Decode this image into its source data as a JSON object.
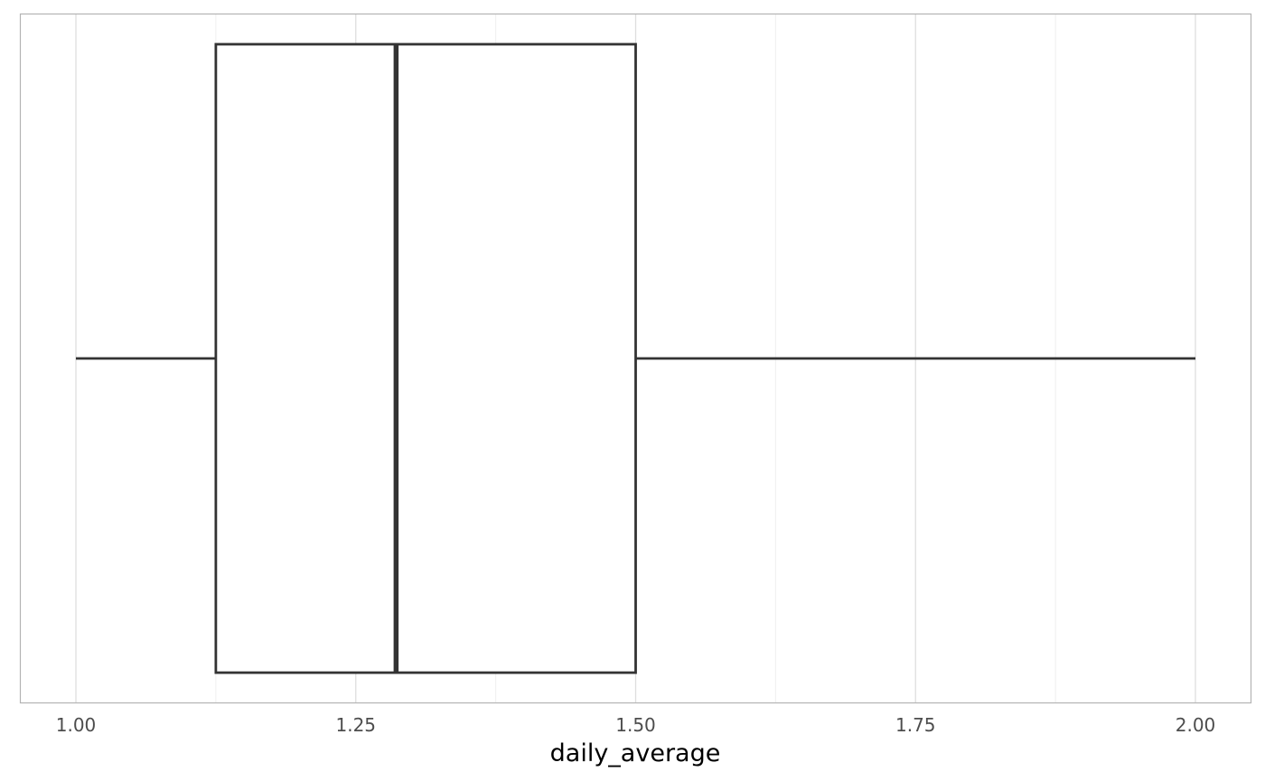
{
  "chart_data": {
    "type": "boxplot",
    "title": "",
    "xlabel": "daily_average",
    "ylabel": "",
    "xlim": [
      0.9,
      2.05
    ],
    "x_ticks": [
      "1.00",
      "1.25",
      "1.50",
      "1.75",
      "2.00"
    ],
    "x_tick_values": [
      1.0,
      1.25,
      1.5,
      1.75,
      2.0
    ],
    "minor_gridlines": [
      1.125,
      1.375,
      1.625,
      1.875
    ],
    "grid": true,
    "legend": "none",
    "box": {
      "min": 1.0,
      "q1": 1.125,
      "median": 1.286,
      "q3": 1.5,
      "max": 2.0
    },
    "colors": {
      "box_line": "#333333",
      "box_fill": "#ffffff",
      "panel_border": "#b3b3b3",
      "grid_major": "#dedede",
      "grid_minor": "#efefef"
    }
  }
}
